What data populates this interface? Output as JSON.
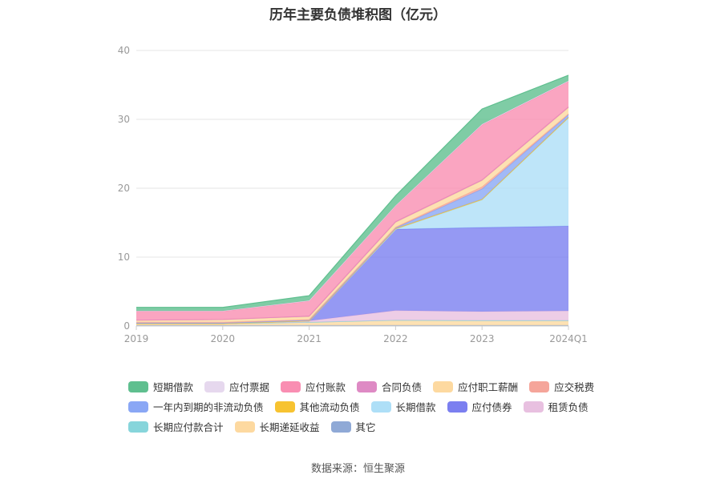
{
  "chart_data": {
    "type": "area",
    "stacked": true,
    "title": "历年主要负债堆积图（亿元）",
    "x": [
      "2019",
      "2020",
      "2021",
      "2022",
      "2023",
      "2024Q1"
    ],
    "y_ticks": [
      "0",
      "10",
      "20",
      "30",
      "40"
    ],
    "ylim": [
      0,
      40
    ],
    "grid": true,
    "legend_position": "bottom",
    "series": [
      {
        "name": "其它",
        "color": "#8fa9d6",
        "values": [
          0.1,
          0.1,
          0.1,
          0.1,
          0.1,
          0.1
        ]
      },
      {
        "name": "长期递延收益",
        "color": "#fdd9a0",
        "values": [
          0.25,
          0.25,
          0.45,
          0.75,
          0.7,
          0.7
        ]
      },
      {
        "name": "长期应付款合计",
        "color": "#87d5db",
        "values": [
          0,
          0,
          0,
          0,
          0,
          0
        ]
      },
      {
        "name": "租赁负债",
        "color": "#e8c0e0",
        "values": [
          0,
          0,
          0.2,
          1.4,
          1.3,
          1.4
        ]
      },
      {
        "name": "应付债券",
        "color": "#7b7ff0",
        "values": [
          0,
          0,
          0,
          11.8,
          12.2,
          12.3
        ]
      },
      {
        "name": "长期借款",
        "color": "#aedff7",
        "values": [
          0,
          0,
          0,
          0,
          4.0,
          15.7
        ]
      },
      {
        "name": "其他流动负债",
        "color": "#f7c331",
        "values": [
          0,
          0,
          0,
          0.1,
          0.1,
          0.1
        ]
      },
      {
        "name": "一年内到期的非流动负债",
        "color": "#8aa7f5",
        "values": [
          0.1,
          0.1,
          0.1,
          0.1,
          1.5,
          0.4
        ]
      },
      {
        "name": "应交税费",
        "color": "#f5a59a",
        "values": [
          0.1,
          0.1,
          0.1,
          0.1,
          0.3,
          0.1
        ]
      },
      {
        "name": "应付职工薪酬",
        "color": "#fdd9a0",
        "values": [
          0.3,
          0.4,
          0.4,
          0.7,
          0.9,
          0.9
        ]
      },
      {
        "name": "合同负债",
        "color": "#de8ac4",
        "values": [
          0,
          0,
          0.1,
          0.1,
          0.1,
          0.1
        ]
      },
      {
        "name": "应付账款",
        "color": "#f98eb2",
        "values": [
          1.3,
          1.2,
          2.2,
          2.3,
          8.0,
          3.7
        ]
      },
      {
        "name": "应付票据",
        "color": "#e6d8ee",
        "values": [
          0.05,
          0.05,
          0.05,
          0.05,
          0.1,
          0.1
        ]
      },
      {
        "name": "短期借款",
        "color": "#5fbf8f",
        "values": [
          0.5,
          0.5,
          0.7,
          1.4,
          2.2,
          0.8
        ]
      }
    ]
  },
  "legend": {
    "rows": [
      [
        {
          "label": "短期借款",
          "color": "#5fbf8f"
        },
        {
          "label": "应付票据",
          "color": "#e6d8ee"
        },
        {
          "label": "应付账款",
          "color": "#f98eb2"
        },
        {
          "label": "合同负债",
          "color": "#de8ac4"
        },
        {
          "label": "应付职工薪酬",
          "color": "#fdd9a0"
        },
        {
          "label": "应交税费",
          "color": "#f5a59a"
        }
      ],
      [
        {
          "label": "一年内到期的非流动负债",
          "color": "#8aa7f5"
        },
        {
          "label": "其他流动负债",
          "color": "#f7c331"
        },
        {
          "label": "长期借款",
          "color": "#aedff7"
        },
        {
          "label": "应付债券",
          "color": "#7b7ff0"
        },
        {
          "label": "租赁负债",
          "color": "#e8c0e0"
        }
      ],
      [
        {
          "label": "长期应付款合计",
          "color": "#87d5db"
        },
        {
          "label": "长期递延收益",
          "color": "#fdd9a0"
        },
        {
          "label": "其它",
          "color": "#8fa9d6"
        }
      ]
    ]
  },
  "footer": {
    "source": "数据来源：恒生聚源"
  }
}
